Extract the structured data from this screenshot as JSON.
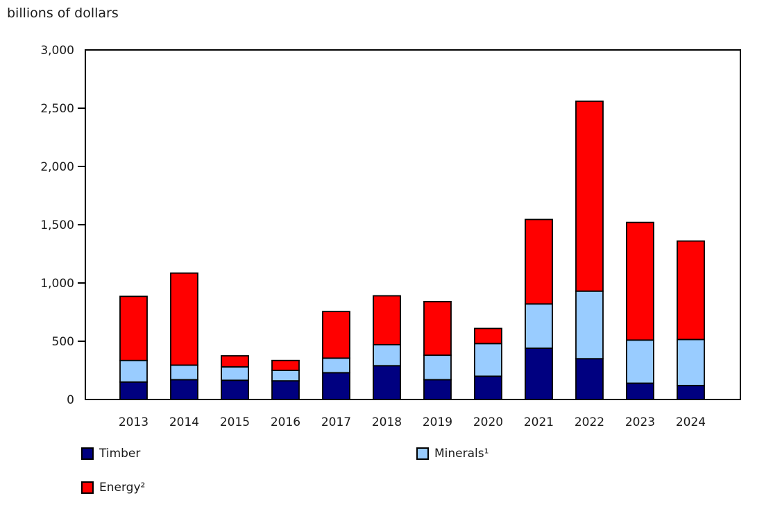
{
  "chart_data": {
    "type": "bar",
    "stacked": true,
    "title": "billions of dollars",
    "xlabel": "",
    "ylabel": "billions of dollars",
    "ylim": [
      0,
      3000
    ],
    "ytick_interval": 500,
    "ytick_labels": [
      "0",
      "500",
      "1,000",
      "1,500",
      "2,000",
      "2,500",
      "3,000"
    ],
    "grid": false,
    "legend_position": "bottom",
    "categories": [
      "2013",
      "2014",
      "2015",
      "2016",
      "2017",
      "2018",
      "2019",
      "2020",
      "2021",
      "2022",
      "2023",
      "2024"
    ],
    "series": [
      {
        "name": "Timber",
        "color": "#000080",
        "values": [
          150,
          170,
          165,
          160,
          230,
          290,
          170,
          200,
          440,
          350,
          140,
          120
        ]
      },
      {
        "name": "Minerals¹",
        "color": "#99ccff",
        "values": [
          185,
          125,
          115,
          90,
          125,
          180,
          210,
          280,
          380,
          580,
          370,
          395
        ]
      },
      {
        "name": "Energy²",
        "color": "#ff0000",
        "values": [
          550,
          790,
          95,
          85,
          400,
          420,
          460,
          130,
          725,
          1630,
          1010,
          845
        ]
      }
    ],
    "totals": [
      885,
      1085,
      375,
      335,
      755,
      890,
      840,
      610,
      1545,
      2560,
      1520,
      1360
    ],
    "axis_color": "#000000",
    "text_color": "#1a1a1a"
  }
}
